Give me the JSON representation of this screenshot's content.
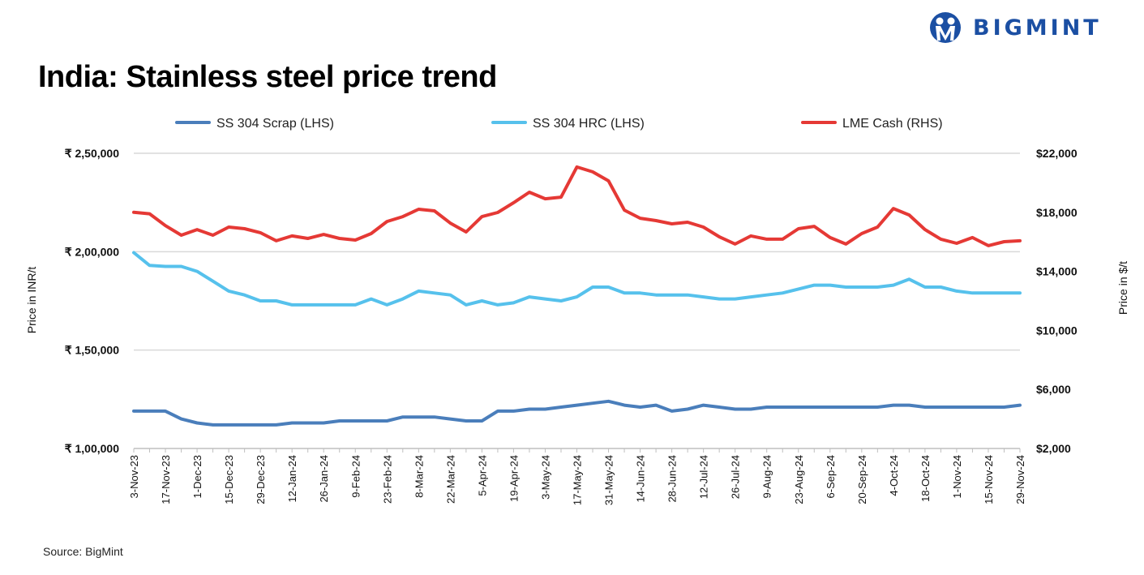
{
  "brand": {
    "name": "BIGMINT",
    "color": "#1b4fa3"
  },
  "title": "India: Stainless steel price trend",
  "source": "Source: BigMint",
  "chart_data": {
    "type": "line",
    "title": "India: Stainless steel price trend",
    "x": [
      "3-Nov-23",
      "10-Nov-23",
      "17-Nov-23",
      "24-Nov-23",
      "1-Dec-23",
      "8-Dec-23",
      "15-Dec-23",
      "22-Dec-23",
      "29-Dec-23",
      "5-Jan-24",
      "12-Jan-24",
      "19-Jan-24",
      "26-Jan-24",
      "2-Feb-24",
      "9-Feb-24",
      "16-Feb-24",
      "23-Feb-24",
      "1-Mar-24",
      "8-Mar-24",
      "15-Mar-24",
      "22-Mar-24",
      "29-Mar-24",
      "5-Apr-24",
      "12-Apr-24",
      "19-Apr-24",
      "26-Apr-24",
      "3-May-24",
      "10-May-24",
      "17-May-24",
      "24-May-24",
      "31-May-24",
      "7-Jun-24",
      "14-Jun-24",
      "21-Jun-24",
      "28-Jun-24",
      "5-Jul-24",
      "12-Jul-24",
      "19-Jul-24",
      "26-Jul-24",
      "2-Aug-24",
      "9-Aug-24",
      "16-Aug-24",
      "23-Aug-24",
      "30-Aug-24",
      "6-Sep-24",
      "13-Sep-24",
      "20-Sep-24",
      "27-Sep-24",
      "4-Oct-24",
      "11-Oct-24",
      "18-Oct-24",
      "25-Oct-24",
      "1-Nov-24",
      "8-Nov-24",
      "15-Nov-24",
      "22-Nov-24",
      "29-Nov-24"
    ],
    "x_tick_labels": [
      "3-Nov-23",
      "17-Nov-23",
      "1-Dec-23",
      "15-Dec-23",
      "29-Dec-23",
      "12-Jan-24",
      "26-Jan-24",
      "9-Feb-24",
      "23-Feb-24",
      "8-Mar-24",
      "22-Mar-24",
      "5-Apr-24",
      "19-Apr-24",
      "3-May-24",
      "17-May-24",
      "31-May-24",
      "14-Jun-24",
      "28-Jun-24",
      "12-Jul-24",
      "26-Jul-24",
      "9-Aug-24",
      "23-Aug-24",
      "6-Sep-24",
      "20-Sep-24",
      "4-Oct-24",
      "18-Oct-24",
      "1-Nov-24",
      "15-Nov-24",
      "29-Nov-24"
    ],
    "ylabel_left": "Price in INR/t",
    "ylabel_right": "Price in $/t",
    "ylim_left": [
      100000,
      250000
    ],
    "ylim_right": [
      2000,
      22000
    ],
    "yticks_left": [
      "₹ 1,00,000",
      "₹ 1,50,000",
      "₹ 2,00,000",
      "₹ 2,50,000"
    ],
    "yticks_right": [
      "$2,000",
      "$6,000",
      "$10,000",
      "$14,000",
      "$18,000",
      "$22,000"
    ],
    "grid": "horizontal",
    "legend_position": "top",
    "series": [
      {
        "name": "SS 304 Scrap (LHS)",
        "axis": "left",
        "color": "#4a7ebb",
        "values": [
          119000,
          119000,
          119000,
          115000,
          113000,
          112000,
          112000,
          112000,
          112000,
          112000,
          113000,
          113000,
          113000,
          114000,
          114000,
          114000,
          114000,
          116000,
          116000,
          116000,
          115000,
          114000,
          114000,
          119000,
          119000,
          120000,
          120000,
          121000,
          122000,
          123000,
          124000,
          122000,
          121000,
          122000,
          119000,
          120000,
          122000,
          121000,
          120000,
          120000,
          121000,
          121000,
          121000,
          121000,
          121000,
          121000,
          121000,
          121000,
          122000,
          122000,
          121000,
          121000,
          121000,
          121000,
          121000,
          121000,
          122000
        ]
      },
      {
        "name": "SS 304 HRC (LHS)",
        "axis": "left",
        "color": "#56c1ec",
        "values": [
          199500,
          193000,
          192500,
          192500,
          190000,
          185000,
          180000,
          178000,
          175000,
          175000,
          173000,
          173000,
          173000,
          173000,
          173000,
          176000,
          173000,
          176000,
          180000,
          179000,
          178000,
          173000,
          175000,
          173000,
          174000,
          177000,
          176000,
          175000,
          177000,
          182000,
          182000,
          179000,
          179000,
          178000,
          178000,
          178000,
          177000,
          176000,
          176000,
          177000,
          178000,
          179000,
          181000,
          183000,
          183000,
          182000,
          182000,
          182000,
          183000,
          186000,
          182000,
          182000,
          180000,
          179000,
          179000,
          179000,
          179000
        ]
      },
      {
        "name": "LME Cash (RHS)",
        "axis": "right",
        "color": "#e53935",
        "values": [
          18000,
          17900,
          17100,
          16450,
          16830,
          16450,
          17000,
          16890,
          16620,
          16070,
          16400,
          16230,
          16500,
          16230,
          16120,
          16560,
          17380,
          17710,
          18210,
          18100,
          17270,
          16670,
          17710,
          17990,
          18650,
          19360,
          18920,
          19030,
          21070,
          20740,
          20130,
          18150,
          17600,
          17440,
          17220,
          17330,
          17000,
          16340,
          15850,
          16400,
          16180,
          16180,
          16890,
          17050,
          16290,
          15850,
          16560,
          17000,
          18260,
          17820,
          16830,
          16180,
          15900,
          16290,
          15740,
          16010,
          16070
        ]
      }
    ]
  }
}
